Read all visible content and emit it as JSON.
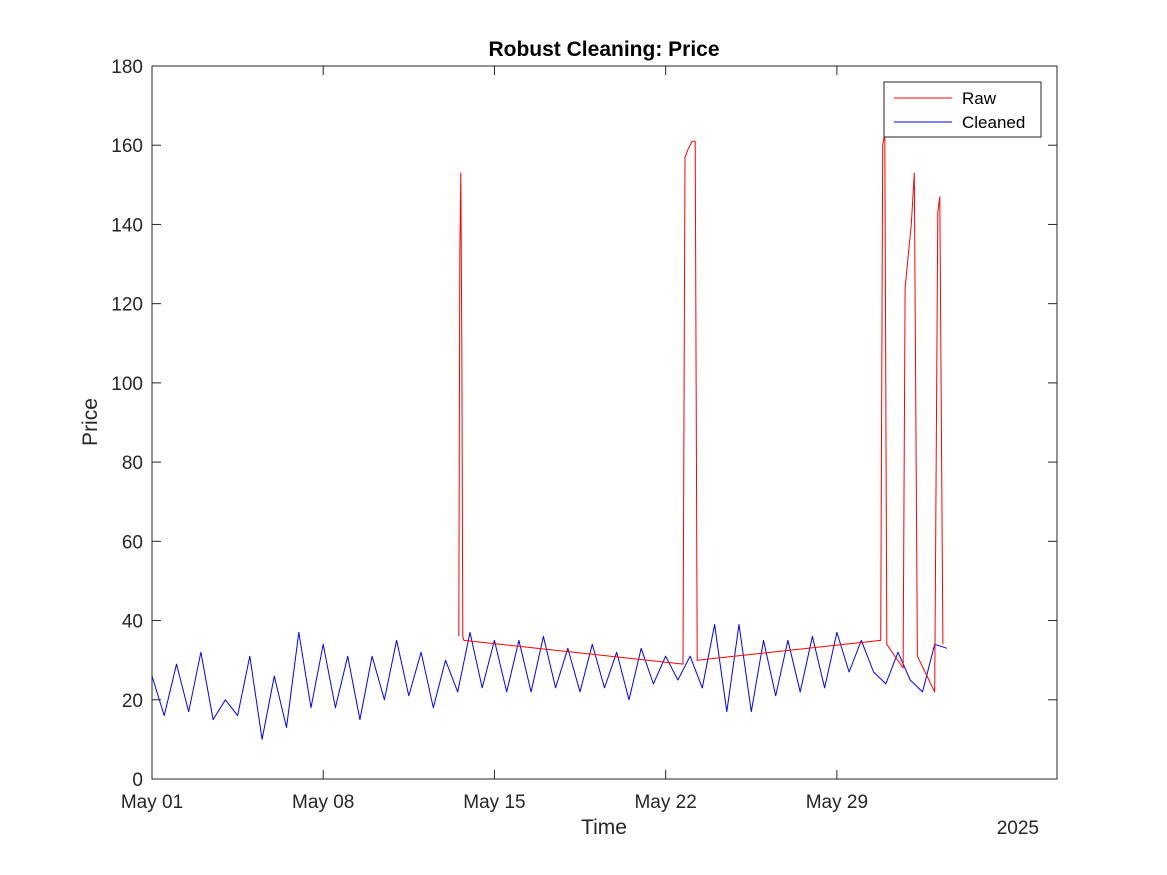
{
  "chart_data": {
    "type": "line",
    "title": "Robust Cleaning: Price",
    "xlabel": "Time",
    "ylabel": "Price",
    "x_secondary_label": "2025",
    "xlim": [
      "2025-05-01",
      "2025-06-07"
    ],
    "ylim": [
      0,
      180
    ],
    "yticks": [
      0,
      20,
      40,
      60,
      80,
      100,
      120,
      140,
      160,
      180
    ],
    "xticks": [
      {
        "date": "2025-05-01",
        "label": "May 01"
      },
      {
        "date": "2025-05-08",
        "label": "May 08"
      },
      {
        "date": "2025-05-15",
        "label": "May 15"
      },
      {
        "date": "2025-05-22",
        "label": "May 22"
      },
      {
        "date": "2025-05-29",
        "label": "May 29"
      }
    ],
    "grid": false,
    "legend_position": "top-right",
    "series": [
      {
        "name": "Raw",
        "color": "#ff0000",
        "x": [
          "2025-05-13T13:00",
          "2025-05-13T14:00",
          "2025-05-13T15:00",
          "2025-05-13T16:00",
          "2025-05-13T17:00",
          "2025-05-13T18:00",
          "2025-05-22T17:00",
          "2025-05-22T19:00",
          "2025-05-22T22:00",
          "2025-05-23T02:00",
          "2025-05-23T05:00",
          "2025-05-23T07:00",
          "2025-05-30T19:00",
          "2025-05-30T21:00",
          "2025-05-30T23:00",
          "2025-05-31T01:00",
          "2025-05-31T17:00",
          "2025-05-31T19:00",
          "2025-06-01T01:00",
          "2025-06-01T04:00",
          "2025-06-01T07:00",
          "2025-06-02T00:00",
          "2025-06-02T03:00",
          "2025-06-02T05:00",
          "2025-06-02T08:00"
        ],
        "y": [
          36,
          132,
          153,
          110,
          36,
          35,
          29,
          157,
          159,
          161,
          161,
          30,
          35,
          160,
          163,
          34,
          28,
          124,
          140,
          153,
          31,
          22,
          143,
          147,
          34
        ]
      },
      {
        "name": "Cleaned",
        "color": "#0000ff",
        "x": [
          "2025-05-01T00:00",
          "2025-05-01T12:00",
          "2025-05-02T00:00",
          "2025-05-02T12:00",
          "2025-05-03T00:00",
          "2025-05-03T12:00",
          "2025-05-04T00:00",
          "2025-05-04T12:00",
          "2025-05-05T00:00",
          "2025-05-05T12:00",
          "2025-05-06T00:00",
          "2025-05-06T12:00",
          "2025-05-07T00:00",
          "2025-05-07T12:00",
          "2025-05-08T00:00",
          "2025-05-08T12:00",
          "2025-05-09T00:00",
          "2025-05-09T12:00",
          "2025-05-10T00:00",
          "2025-05-10T12:00",
          "2025-05-11T00:00",
          "2025-05-11T12:00",
          "2025-05-12T00:00",
          "2025-05-12T12:00",
          "2025-05-13T00:00",
          "2025-05-13T12:00",
          "2025-05-14T00:00",
          "2025-05-14T12:00",
          "2025-05-15T00:00",
          "2025-05-15T12:00",
          "2025-05-16T00:00",
          "2025-05-16T12:00",
          "2025-05-17T00:00",
          "2025-05-17T12:00",
          "2025-05-18T00:00",
          "2025-05-18T12:00",
          "2025-05-19T00:00",
          "2025-05-19T12:00",
          "2025-05-20T00:00",
          "2025-05-20T12:00",
          "2025-05-21T00:00",
          "2025-05-21T12:00",
          "2025-05-22T00:00",
          "2025-05-22T12:00",
          "2025-05-23T00:00",
          "2025-05-23T12:00",
          "2025-05-24T00:00",
          "2025-05-24T12:00",
          "2025-05-25T00:00",
          "2025-05-25T12:00",
          "2025-05-26T00:00",
          "2025-05-26T12:00",
          "2025-05-27T00:00",
          "2025-05-27T12:00",
          "2025-05-28T00:00",
          "2025-05-28T12:00",
          "2025-05-29T00:00",
          "2025-05-29T12:00",
          "2025-05-30T00:00",
          "2025-05-30T12:00",
          "2025-05-31T00:00",
          "2025-05-31T12:00",
          "2025-06-01T00:00",
          "2025-06-01T12:00",
          "2025-06-02T00:00",
          "2025-06-02T12:00"
        ],
        "y": [
          26,
          16,
          29,
          17,
          32,
          15,
          20,
          16,
          31,
          10,
          26,
          13,
          37,
          18,
          34,
          18,
          31,
          15,
          31,
          20,
          35,
          21,
          32,
          18,
          30,
          22,
          37,
          23,
          35,
          22,
          35,
          22,
          36,
          23,
          33,
          22,
          34,
          23,
          32,
          20,
          33,
          24,
          31,
          25,
          31,
          23,
          39,
          17,
          39,
          17,
          35,
          21,
          35,
          22,
          36,
          23,
          37,
          27,
          35,
          27,
          24,
          32,
          25,
          22,
          34,
          33
        ]
      }
    ]
  }
}
